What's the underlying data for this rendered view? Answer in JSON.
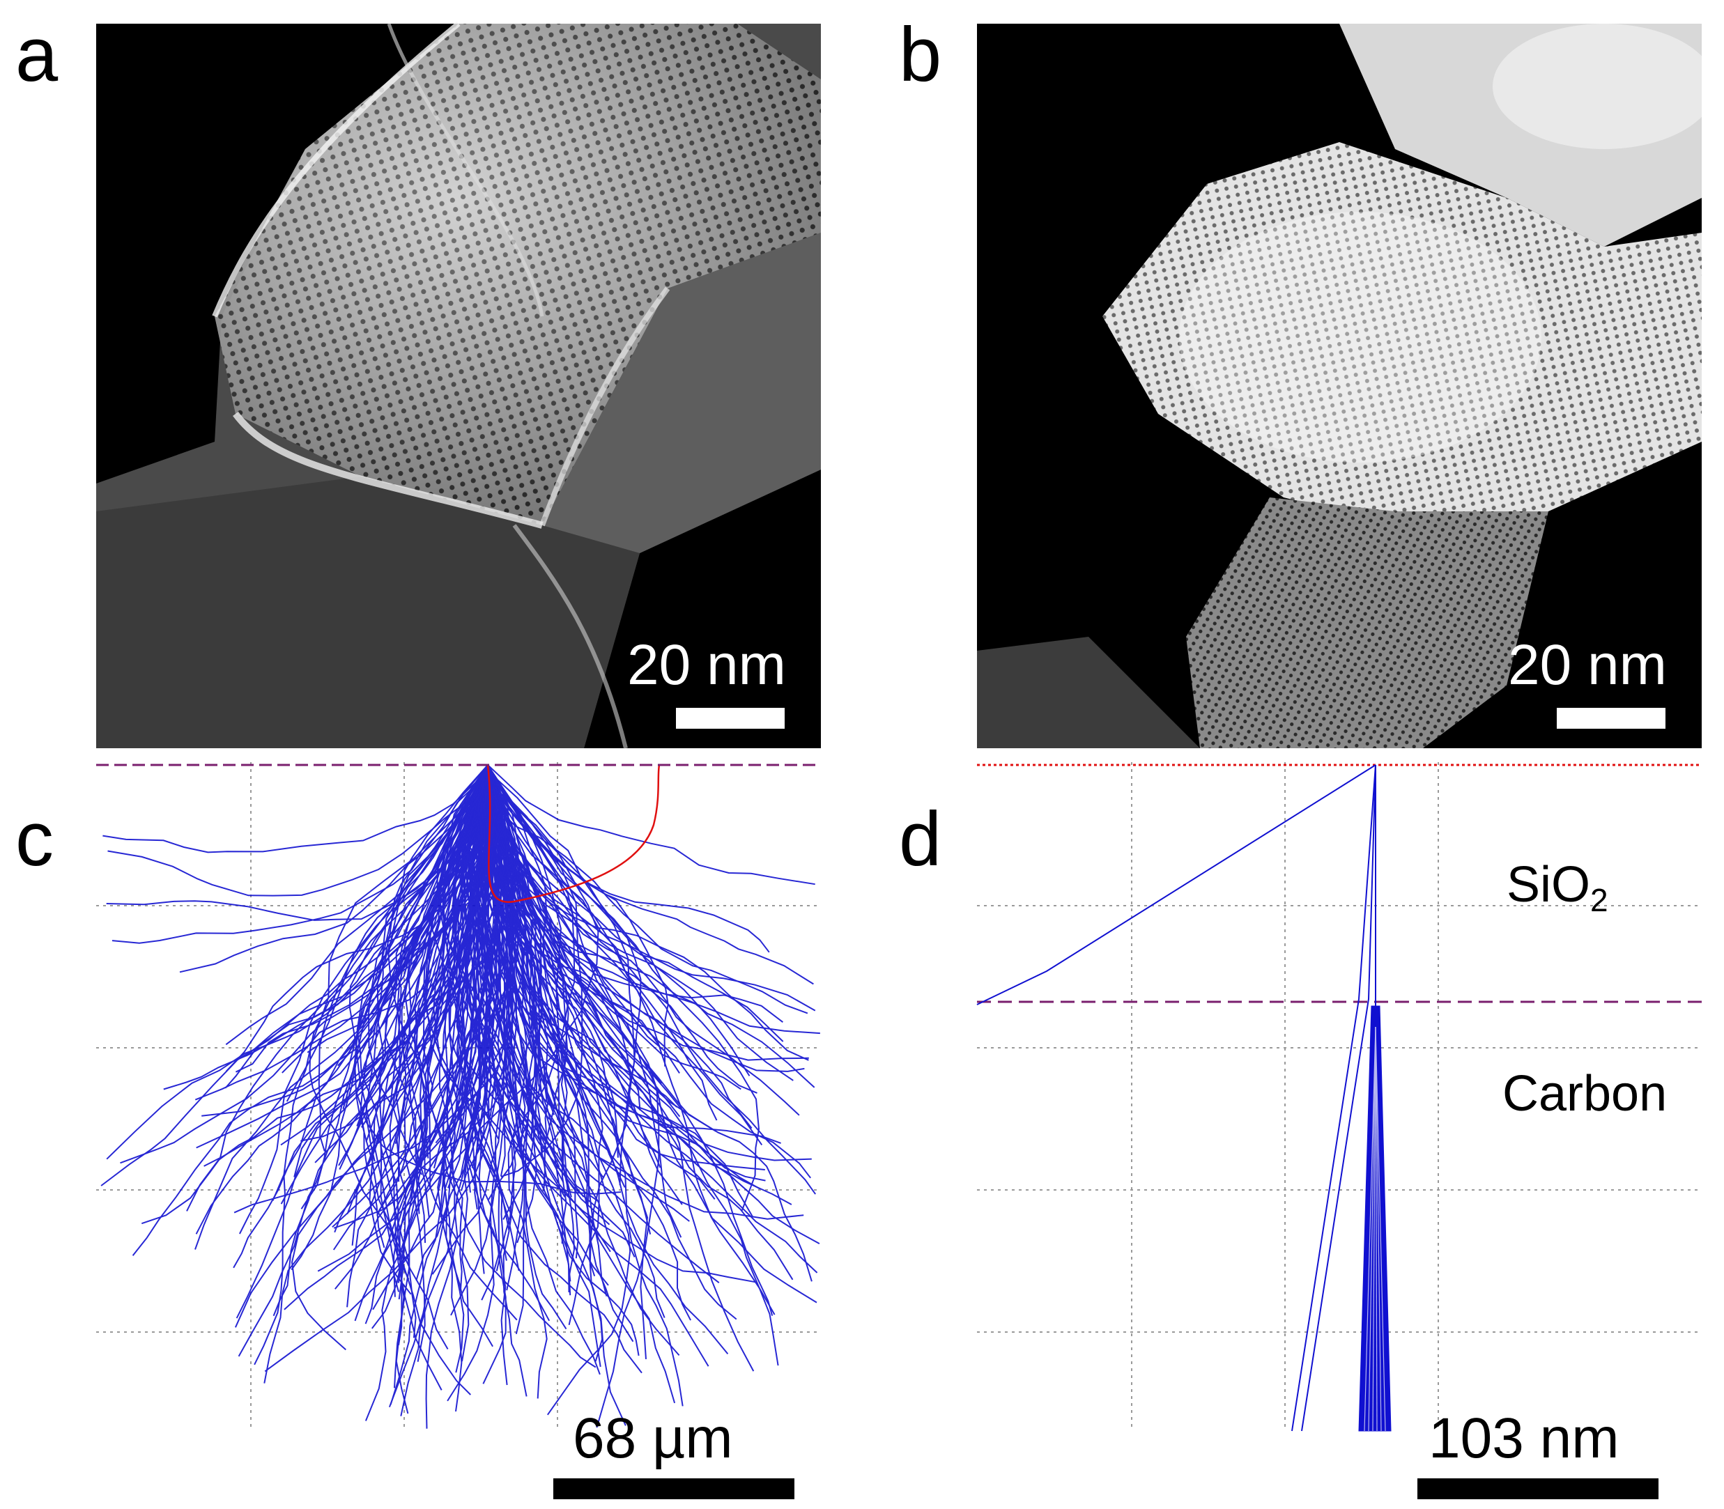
{
  "panels": {
    "a": {
      "letter": "a",
      "scale_label": "20 nm"
    },
    "b": {
      "letter": "b",
      "scale_label": "20 nm"
    },
    "c": {
      "letter": "c",
      "scale_label": "68 µm"
    },
    "d": {
      "letter": "d",
      "scale_label": "103 nm",
      "layer_top": "SiO",
      "layer_top_sub": "2",
      "layer_bottom": "Carbon"
    }
  },
  "colors": {
    "trajectory": "#1010d0",
    "backscatter": "#e01010",
    "surface_line": "#7a1f6e",
    "grid": "#9a9a9a"
  }
}
